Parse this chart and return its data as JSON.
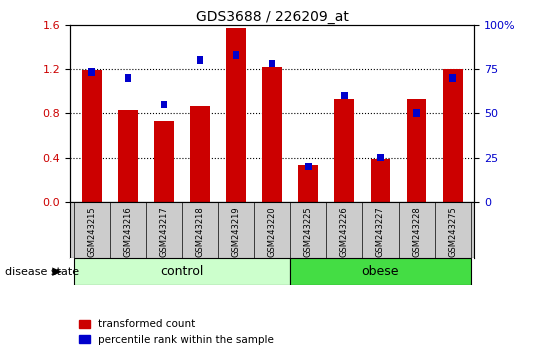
{
  "title": "GDS3688 / 226209_at",
  "samples": [
    "GSM243215",
    "GSM243216",
    "GSM243217",
    "GSM243218",
    "GSM243219",
    "GSM243220",
    "GSM243225",
    "GSM243226",
    "GSM243227",
    "GSM243228",
    "GSM243275"
  ],
  "transformed_count": [
    1.19,
    0.83,
    0.73,
    0.87,
    1.57,
    1.22,
    0.33,
    0.93,
    0.39,
    0.93,
    1.2
  ],
  "percentile_rank_scaled": [
    1.17,
    1.12,
    0.88,
    1.28,
    1.33,
    1.25,
    0.32,
    0.96,
    0.4,
    0.8,
    1.12
  ],
  "groups": [
    {
      "label": "control",
      "start": 0,
      "end": 5,
      "color": "#ccffcc"
    },
    {
      "label": "obese",
      "start": 6,
      "end": 10,
      "color": "#44dd44"
    }
  ],
  "disease_state_label": "disease state",
  "left_yticks": [
    0,
    0.4,
    0.8,
    1.2,
    1.6
  ],
  "right_ytick_labels": [
    "0",
    "25",
    "50",
    "75",
    "100%"
  ],
  "right_ytick_vals": [
    0,
    0.4,
    0.8,
    1.2,
    1.6
  ],
  "ylim_left": [
    0,
    1.6
  ],
  "bar_color_red": "#cc0000",
  "bar_color_blue": "#0000cc",
  "bar_width": 0.55,
  "blue_bar_width": 0.18,
  "blue_bar_height": 0.07,
  "legend_red_label": "transformed count",
  "legend_blue_label": "percentile rank within the sample",
  "bg_color": "#cccccc",
  "tick_label_color_left": "#cc0000",
  "tick_label_color_right": "#0000cc"
}
